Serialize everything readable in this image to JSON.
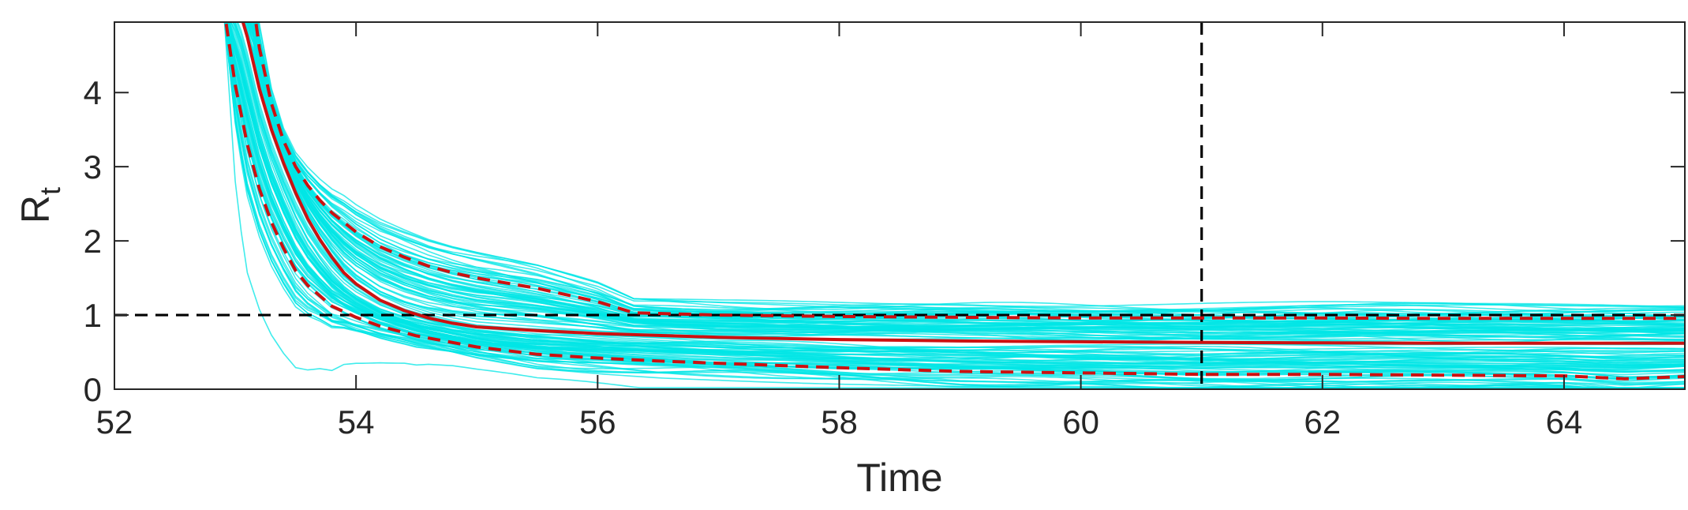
{
  "chart_data": {
    "type": "line",
    "xlabel": "Time",
    "ylabel_main": "R",
    "ylabel_sub": "t",
    "xlim": [
      52,
      65
    ],
    "ylim": [
      0,
      4.95
    ],
    "x_ticks": [
      52,
      54,
      56,
      58,
      60,
      62,
      64
    ],
    "y_ticks": [
      0,
      1,
      2,
      3,
      4
    ],
    "grid": false,
    "reference_lines": [
      {
        "orientation": "horizontal",
        "value": 1,
        "color": "#000000",
        "style": "dashed"
      },
      {
        "orientation": "vertical",
        "value": 61,
        "color": "#000000",
        "style": "dashed"
      }
    ],
    "ensemble": {
      "color": "#00e5e5",
      "count": 120
    },
    "series": [
      {
        "role": "median",
        "color": "#cc1111",
        "style": "solid",
        "x": [
          53.02,
          53.1,
          53.2,
          53.3,
          53.4,
          53.5,
          53.6,
          53.7,
          53.8,
          53.9,
          54.0,
          54.2,
          54.4,
          54.6,
          54.8,
          55.0,
          55.5,
          56.0,
          57.0,
          58.0,
          59.0,
          60.0,
          61.0,
          62.0,
          63.0,
          64.0,
          65.0
        ],
        "y": [
          5.2,
          4.75,
          4.05,
          3.5,
          3.05,
          2.65,
          2.3,
          2.02,
          1.78,
          1.57,
          1.42,
          1.2,
          1.06,
          0.96,
          0.89,
          0.84,
          0.79,
          0.75,
          0.7,
          0.67,
          0.65,
          0.64,
          0.63,
          0.625,
          0.62,
          0.62,
          0.62
        ]
      },
      {
        "role": "upper",
        "color": "#cc1111",
        "style": "dashed",
        "x": [
          53.15,
          53.2,
          53.3,
          53.4,
          53.5,
          53.6,
          53.7,
          53.8,
          54.0,
          54.2,
          54.4,
          54.6,
          54.8,
          55.0,
          55.5,
          56.0,
          56.3,
          57.0,
          58.0,
          59.0,
          60.0,
          61.0,
          62.0,
          63.0,
          64.0,
          65.0
        ],
        "y": [
          5.2,
          4.6,
          3.85,
          3.35,
          3.0,
          2.75,
          2.55,
          2.38,
          2.12,
          1.92,
          1.78,
          1.66,
          1.57,
          1.5,
          1.36,
          1.18,
          1.03,
          1.0,
          0.98,
          0.97,
          0.96,
          0.96,
          0.96,
          0.955,
          0.955,
          0.955
        ]
      },
      {
        "role": "lower",
        "color": "#cc1111",
        "style": "dashed",
        "x": [
          52.9,
          53.0,
          53.1,
          53.2,
          53.3,
          53.4,
          53.5,
          53.6,
          53.8,
          54.0,
          54.2,
          54.5,
          55.0,
          55.5,
          56.0,
          56.5,
          57.0,
          58.0,
          59.0,
          60.0,
          61.0,
          62.0,
          63.0,
          64.0,
          64.5,
          65.0
        ],
        "y": [
          5.2,
          4.1,
          3.3,
          2.7,
          2.25,
          1.9,
          1.6,
          1.4,
          1.12,
          0.97,
          0.85,
          0.72,
          0.57,
          0.47,
          0.42,
          0.38,
          0.35,
          0.29,
          0.24,
          0.22,
          0.2,
          0.2,
          0.19,
          0.18,
          0.14,
          0.17
        ]
      }
    ]
  }
}
